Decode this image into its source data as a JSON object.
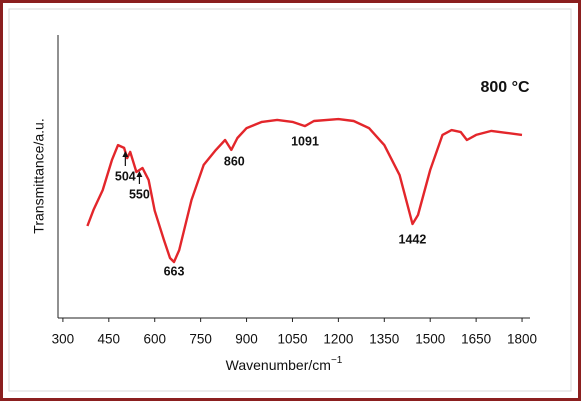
{
  "chart_data": {
    "type": "line",
    "xlabel": {
      "text": "Wavenumber/cm",
      "superscript": "−1"
    },
    "ylabel": "Transmittance/a.u.",
    "annotation": "800 °C",
    "x": [
      380,
      400,
      430,
      460,
      480,
      500,
      510,
      520,
      540,
      560,
      580,
      600,
      630,
      650,
      663,
      680,
      720,
      760,
      800,
      830,
      850,
      870,
      900,
      950,
      1000,
      1050,
      1091,
      1120,
      1200,
      1250,
      1300,
      1350,
      1400,
      1430,
      1442,
      1460,
      1500,
      1540,
      1570,
      1600,
      1620,
      1650,
      1700,
      1750,
      1800
    ],
    "series": [
      {
        "name": "800 °C",
        "color": "#e3262b",
        "values": [
          32.5,
          38.2,
          45.2,
          55.8,
          61.1,
          60.1,
          56.5,
          58.7,
          51.6,
          53.0,
          48.8,
          37.9,
          27.6,
          21.2,
          19.8,
          24.0,
          41.7,
          54.1,
          59.4,
          62.9,
          59.4,
          63.6,
          67.1,
          69.3,
          70.0,
          69.3,
          67.8,
          69.6,
          70.3,
          69.6,
          67.1,
          61.1,
          50.5,
          38.2,
          33.2,
          36.4,
          52.3,
          64.7,
          66.4,
          65.7,
          62.9,
          64.7,
          66.1,
          65.4,
          64.7
        ]
      }
    ],
    "peak_labels": [
      504,
      550,
      663,
      860,
      1091,
      1442
    ],
    "xlim": [
      284,
      1826
    ],
    "xticks": [
      300,
      450,
      600,
      750,
      900,
      1050,
      1200,
      1350,
      1500,
      1650,
      1800
    ],
    "ylim": [
      0,
      100
    ]
  }
}
